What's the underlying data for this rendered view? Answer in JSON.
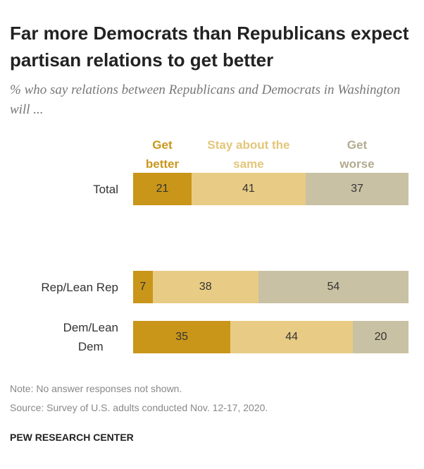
{
  "chart_data": {
    "type": "stacked-bar",
    "title": "Far more Democrats than Republicans expect partisan relations to get better",
    "subtitle": "% who say relations between Republicans and Democrats in Washington will ...",
    "categories": [
      "Total",
      "Rep/Lean Rep",
      "Dem/Lean\nDem"
    ],
    "series": [
      {
        "name": "Get\nbetter",
        "color": "#c9961a",
        "label_color": "#c9961a",
        "values": [
          21,
          7,
          35
        ]
      },
      {
        "name": "Stay about the\nsame",
        "color": "#e8cc85",
        "label_color": "#e3c679",
        "values": [
          41,
          38,
          44
        ]
      },
      {
        "name": "Get\nworse",
        "color": "#c9c1a3",
        "label_color": "#b3ab90",
        "values": [
          37,
          54,
          20
        ]
      }
    ],
    "note": "Note: No answer responses not shown.",
    "source": "Source: Survey of U.S. adults conducted Nov. 12-17, 2020.",
    "footer": "PEW RESEARCH CENTER"
  }
}
